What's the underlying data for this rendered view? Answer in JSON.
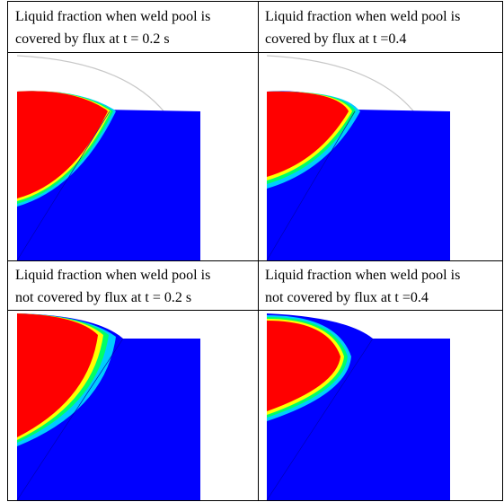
{
  "captions": {
    "tl_line1": "Liquid fraction when weld pool is",
    "tl_line2": "covered by flux at t = 0.2 s",
    "tr_line1": "Liquid fraction when weld pool is",
    "tr_line2": "covered by flux at t =0.4",
    "bl_line1": "Liquid fraction when weld pool is",
    "bl_line2": "not covered by flux at t = 0.2  s",
    "br_line1": "Liquid fraction when weld pool is",
    "br_line2": "not covered by flux at t =0.4"
  },
  "colors": {
    "liquid": "#ff0000",
    "solid": "#0000ff",
    "mush_yellow": "#ffff00",
    "mush_green": "#00ff66",
    "mush_cyan": "#00ccff",
    "flux_outline": "#c8c8c8"
  },
  "icons": [
    "contour-plot-tl",
    "contour-plot-tr",
    "contour-plot-bl",
    "contour-plot-br"
  ]
}
